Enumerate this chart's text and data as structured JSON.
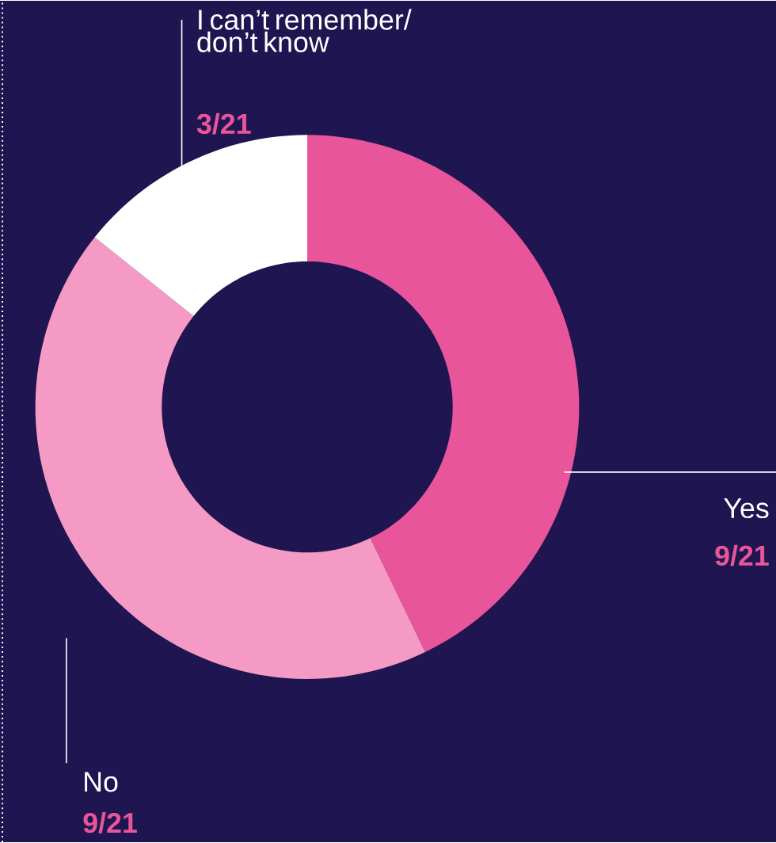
{
  "chart_data": {
    "type": "donut",
    "categories": [
      "Yes",
      "No",
      "I can’t remember/ don’t know"
    ],
    "values": [
      9,
      9,
      3
    ],
    "colors": [
      "#e9559b",
      "#f59ac4",
      "#ffffff"
    ],
    "value_labels": [
      "9/21",
      "9/21",
      "3/21"
    ]
  }
}
